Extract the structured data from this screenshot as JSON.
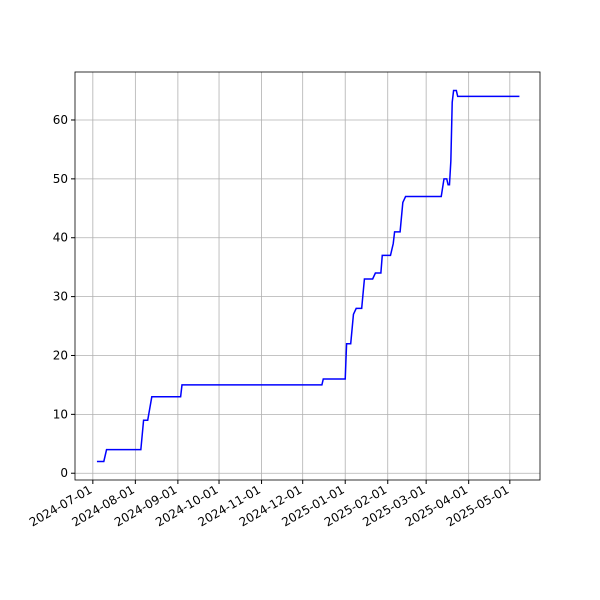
{
  "chart_data": {
    "type": "line",
    "x": [
      "2024-07-04",
      "2024-07-09",
      "2024-07-11",
      "2024-08-05",
      "2024-08-07",
      "2024-08-10",
      "2024-08-13",
      "2024-09-03",
      "2024-09-04",
      "2024-12-15",
      "2024-12-16",
      "2025-01-01",
      "2025-01-02",
      "2025-01-05",
      "2025-01-07",
      "2025-01-09",
      "2025-01-13",
      "2025-01-15",
      "2025-01-21",
      "2025-01-23",
      "2025-01-27",
      "2025-01-28",
      "2025-02-03",
      "2025-02-05",
      "2025-02-06",
      "2025-02-10",
      "2025-02-12",
      "2025-02-14",
      "2025-03-12",
      "2025-03-14",
      "2025-03-16",
      "2025-03-17",
      "2025-03-18",
      "2025-03-19",
      "2025-03-20",
      "2025-03-21",
      "2025-03-23",
      "2025-03-24",
      "2025-05-08"
    ],
    "series": [
      {
        "color": "#0000ff",
        "values": [
          2,
          2,
          4,
          4,
          9,
          9,
          13,
          13,
          15,
          15,
          16,
          16,
          22,
          22,
          27,
          28,
          28,
          33,
          33,
          34,
          34,
          37,
          37,
          39,
          41,
          41,
          46,
          47,
          47,
          50,
          50,
          49,
          49,
          53,
          63,
          65,
          65,
          64,
          64
        ]
      }
    ],
    "xlim": [
      "2024-06-18",
      "2025-05-23"
    ],
    "xticks": [
      "2024-07-01",
      "2024-08-01",
      "2024-09-01",
      "2024-10-01",
      "2024-11-01",
      "2024-12-01",
      "2025-01-01",
      "2025-02-01",
      "2025-03-01",
      "2025-04-01",
      "2025-05-01"
    ],
    "ylim": [
      -1.15,
      68.15
    ],
    "yticks": [
      0,
      10,
      20,
      30,
      40,
      50,
      60
    ],
    "grid": true
  }
}
